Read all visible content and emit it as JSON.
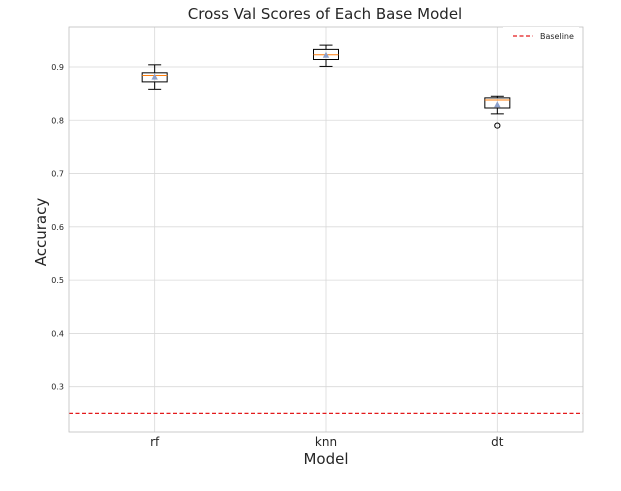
{
  "chart_data": {
    "type": "box",
    "title": "Cross Val Scores of Each Base Model",
    "xlabel": "Model",
    "ylabel": "Accuracy",
    "categories": [
      "rf",
      "knn",
      "dt"
    ],
    "ylim": [
      0.215,
      0.975
    ],
    "yticks": [
      0.3,
      0.4,
      0.5,
      0.6,
      0.7,
      0.8,
      0.9
    ],
    "ytick_labels": [
      "0.3",
      "0.4",
      "0.5",
      "0.6",
      "0.7",
      "0.8",
      "0.9"
    ],
    "grid": true,
    "legend_position": "top-right",
    "boxes": [
      {
        "category": "rf",
        "whisker_low": 0.858,
        "q1": 0.872,
        "median": 0.884,
        "q3": 0.889,
        "whisker_high": 0.904,
        "mean": 0.881,
        "outliers": []
      },
      {
        "category": "knn",
        "whisker_low": 0.901,
        "q1": 0.914,
        "median": 0.923,
        "q3": 0.933,
        "whisker_high": 0.941,
        "mean": 0.922,
        "outliers": []
      },
      {
        "category": "dt",
        "whisker_low": 0.812,
        "q1": 0.823,
        "median": 0.838,
        "q3": 0.842,
        "whisker_high": 0.845,
        "mean": 0.829,
        "outliers": [
          0.79
        ]
      }
    ],
    "baseline": {
      "name": "Baseline",
      "value": 0.25,
      "color": "#e31a1c"
    },
    "colors": {
      "box": "#000000",
      "median": "#ff7f0e",
      "mean": "#8da0cb",
      "grid": "#d9d9d9",
      "frame": "#bfbfbf"
    }
  }
}
